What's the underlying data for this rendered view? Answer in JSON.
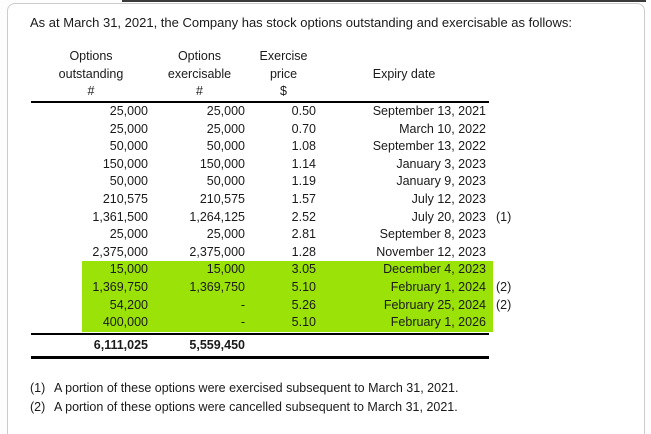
{
  "colors": {
    "highlight": "#9BE209",
    "text": "#1a1a1a",
    "panel_border": "#cccccc",
    "top_bar": "#3a3a3a"
  },
  "title": "As at March 31, 2021, the Company has stock options outstanding and exercisable as follows:",
  "table": {
    "columns": [
      {
        "line1": "Options",
        "line2": "outstanding",
        "line3": "#"
      },
      {
        "line1": "Options",
        "line2": "exercisable",
        "line3": "#"
      },
      {
        "line1": "Exercise",
        "line2": "price",
        "line3": "$"
      },
      {
        "line1": "",
        "line2": "Expiry date",
        "line3": ""
      }
    ],
    "rows": [
      {
        "outstanding": "25,000",
        "exercisable": "25,000",
        "price": "0.50",
        "expiry": "September 13, 2021",
        "note": ""
      },
      {
        "outstanding": "25,000",
        "exercisable": "25,000",
        "price": "0.70",
        "expiry": "March 10, 2022",
        "note": ""
      },
      {
        "outstanding": "50,000",
        "exercisable": "50,000",
        "price": "1.08",
        "expiry": "September 13, 2022",
        "note": ""
      },
      {
        "outstanding": "150,000",
        "exercisable": "150,000",
        "price": "1.14",
        "expiry": "January 3, 2023",
        "note": ""
      },
      {
        "outstanding": "50,000",
        "exercisable": "50,000",
        "price": "1.19",
        "expiry": "January 9, 2023",
        "note": ""
      },
      {
        "outstanding": "210,575",
        "exercisable": "210,575",
        "price": "1.57",
        "expiry": "July 12, 2023",
        "note": ""
      },
      {
        "outstanding": "1,361,500",
        "exercisable": "1,264,125",
        "price": "2.52",
        "expiry": "July 20, 2023",
        "note": "(1)"
      },
      {
        "outstanding": "25,000",
        "exercisable": "25,000",
        "price": "2.81",
        "expiry": "September 8, 2023",
        "note": ""
      },
      {
        "outstanding": "2,375,000",
        "exercisable": "2,375,000",
        "price": "1.28",
        "expiry": "November 12, 2023",
        "note": ""
      },
      {
        "outstanding": "15,000",
        "exercisable": "15,000",
        "price": "3.05",
        "expiry": "December 4, 2023",
        "note": ""
      },
      {
        "outstanding": "1,369,750",
        "exercisable": "1,369,750",
        "price": "5.10",
        "expiry": "February 1, 2024",
        "note": "(2)"
      },
      {
        "outstanding": "54,200",
        "exercisable": "-",
        "price": "5.26",
        "expiry": "February 25, 2024",
        "note": "(2)"
      },
      {
        "outstanding": "400,000",
        "exercisable": "-",
        "price": "5.10",
        "expiry": "February 1, 2026",
        "note": ""
      }
    ],
    "totals": {
      "outstanding": "6,111,025",
      "exercisable": "5,559,450"
    }
  },
  "footnotes": [
    {
      "marker": "(1)",
      "text": "A portion of these options were exercised subsequent to March 31, 2021."
    },
    {
      "marker": "(2)",
      "text": "A portion of these options were cancelled subsequent to March 31, 2021."
    }
  ]
}
